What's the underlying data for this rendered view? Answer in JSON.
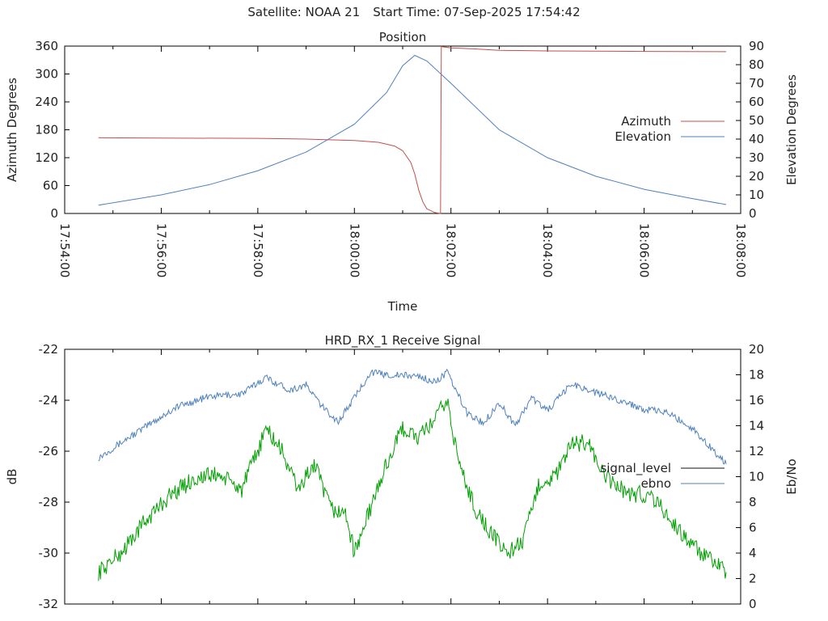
{
  "header": {
    "satellite": "Satellite: NOAA 21",
    "start_time": "Start Time: 07-Sep-2025 17:54:42"
  },
  "chart_data": [
    {
      "type": "line",
      "title": "Position",
      "xlabel": "Time",
      "ylabel": "Azimuth Degrees",
      "y2label": "Elevation Degrees",
      "xlim": [
        "17:54:00",
        "18:08:00"
      ],
      "ylim": [
        0,
        360
      ],
      "y2lim": [
        0,
        90
      ],
      "xticks": [
        "17:54:00",
        "17:56:00",
        "17:58:00",
        "18:00:00",
        "18:02:00",
        "18:04:00",
        "18:06:00",
        "18:08:00"
      ],
      "yticks": [
        "0",
        "60",
        "120",
        "180",
        "240",
        "300",
        "360"
      ],
      "y2ticks": [
        "0",
        "10",
        "20",
        "30",
        "40",
        "50",
        "60",
        "70",
        "80",
        "90"
      ],
      "legend_position": "right",
      "series": [
        {
          "name": "Azimuth",
          "axis": "left",
          "color": "#c0504d",
          "points": [
            [
              "17:54:42",
              163
            ],
            [
              "17:56:00",
              162
            ],
            [
              "17:58:00",
              161.5
            ],
            [
              "17:59:00",
              160
            ],
            [
              "18:00:00",
              157
            ],
            [
              "18:00:30",
              153
            ],
            [
              "18:00:50",
              145
            ],
            [
              "18:01:00",
              135
            ],
            [
              "18:01:10",
              110
            ],
            [
              "18:01:15",
              85
            ],
            [
              "18:01:20",
              50
            ],
            [
              "18:01:25",
              25
            ],
            [
              "18:01:30",
              10
            ],
            [
              "18:01:40",
              2
            ],
            [
              "18:01:47",
              0
            ],
            [
              "18:01:48",
              359
            ],
            [
              "18:02:00",
              356
            ],
            [
              "18:02:30",
              354
            ],
            [
              "18:03:00",
              351
            ],
            [
              "18:04:00",
              349.5
            ],
            [
              "18:06:00",
              348.5
            ],
            [
              "18:07:42",
              348
            ]
          ]
        },
        {
          "name": "Elevation",
          "axis": "right",
          "color": "#4f81bd",
          "points": [
            [
              "17:54:42",
              4.5
            ],
            [
              "17:56:00",
              10
            ],
            [
              "17:57:00",
              15.5
            ],
            [
              "17:58:00",
              23
            ],
            [
              "17:59:00",
              33
            ],
            [
              "18:00:00",
              48
            ],
            [
              "18:00:40",
              65
            ],
            [
              "18:01:00",
              79.5
            ],
            [
              "18:01:15",
              85
            ],
            [
              "18:01:30",
              82
            ],
            [
              "18:02:00",
              70
            ],
            [
              "18:03:00",
              45
            ],
            [
              "18:04:00",
              30
            ],
            [
              "18:05:00",
              20
            ],
            [
              "18:06:00",
              13
            ],
            [
              "18:07:00",
              8
            ],
            [
              "18:07:42",
              4.8
            ]
          ]
        }
      ]
    },
    {
      "type": "line",
      "title": "HRD_RX_1 Receive Signal",
      "ylabel": "dB",
      "y2label": "Eb/No",
      "ylim": [
        -32,
        -22
      ],
      "y2lim": [
        0,
        20
      ],
      "yticks": [
        "-22",
        "-24",
        "-26",
        "-28",
        "-30",
        "-32"
      ],
      "y2ticks": [
        "0",
        "2",
        "4",
        "6",
        "8",
        "10",
        "12",
        "14",
        "16",
        "18",
        "20"
      ],
      "legend_position": "right",
      "series": [
        {
          "name": "signal_level",
          "axis": "left",
          "color": "#111111",
          "points": []
        },
        {
          "name": "ebno",
          "axis": "right",
          "color": "#4f81bd",
          "points": [
            [
              "17:54:42",
              11.5
            ],
            [
              "17:55:30",
              13.5
            ],
            [
              "17:56:20",
              15.5
            ],
            [
              "17:57:00",
              16.3
            ],
            [
              "17:57:40",
              16.5
            ],
            [
              "17:58:10",
              17.8
            ],
            [
              "17:58:40",
              16.8
            ],
            [
              "17:59:00",
              17.2
            ],
            [
              "17:59:20",
              15.5
            ],
            [
              "17:59:40",
              14.3
            ],
            [
              "18:00:00",
              16.2
            ],
            [
              "18:00:20",
              18.2
            ],
            [
              "18:00:40",
              18.0
            ],
            [
              "18:01:20",
              17.9
            ],
            [
              "18:01:40",
              17.4
            ],
            [
              "18:01:55",
              18.2
            ],
            [
              "18:02:20",
              15.0
            ],
            [
              "18:02:40",
              14.2
            ],
            [
              "18:03:00",
              15.8
            ],
            [
              "18:03:20",
              14.0
            ],
            [
              "18:03:40",
              16.2
            ],
            [
              "18:04:00",
              15.2
            ],
            [
              "18:04:30",
              17.3
            ],
            [
              "18:05:00",
              16.6
            ],
            [
              "18:05:30",
              16.0
            ],
            [
              "18:06:00",
              15.3
            ],
            [
              "18:06:30",
              15.0
            ],
            [
              "18:07:00",
              13.8
            ],
            [
              "18:07:42",
              11.0
            ]
          ]
        },
        {
          "name": "",
          "axis": "right",
          "color": "#00a000",
          "points": [
            [
              "17:54:42",
              2.5
            ],
            [
              "17:55:10",
              4.0
            ],
            [
              "17:55:40",
              6.5
            ],
            [
              "17:56:10",
              8.5
            ],
            [
              "17:56:40",
              9.8
            ],
            [
              "17:57:10",
              10.2
            ],
            [
              "17:57:40",
              9.0
            ],
            [
              "17:58:00",
              12.0
            ],
            [
              "17:58:10",
              13.8
            ],
            [
              "17:58:30",
              12.0
            ],
            [
              "17:58:50",
              9.0
            ],
            [
              "17:59:10",
              11.0
            ],
            [
              "17:59:30",
              7.5
            ],
            [
              "17:59:50",
              7.0
            ],
            [
              "18:00:00",
              4.0
            ],
            [
              "18:00:20",
              7.5
            ],
            [
              "18:00:40",
              11.0
            ],
            [
              "18:01:00",
              13.8
            ],
            [
              "18:01:20",
              13.0
            ],
            [
              "18:01:40",
              14.5
            ],
            [
              "18:01:55",
              16.0
            ],
            [
              "18:02:10",
              11.0
            ],
            [
              "18:02:30",
              7.5
            ],
            [
              "18:02:50",
              5.5
            ],
            [
              "18:03:10",
              4.0
            ],
            [
              "18:03:30",
              5.0
            ],
            [
              "18:03:50",
              9.5
            ],
            [
              "18:04:10",
              10.0
            ],
            [
              "18:04:30",
              12.5
            ],
            [
              "18:04:50",
              12.8
            ],
            [
              "18:05:10",
              10.0
            ],
            [
              "18:05:40",
              8.7
            ],
            [
              "18:06:10",
              8.5
            ],
            [
              "18:06:40",
              6.0
            ],
            [
              "18:07:10",
              4.0
            ],
            [
              "18:07:42",
              2.5
            ]
          ]
        }
      ]
    }
  ]
}
